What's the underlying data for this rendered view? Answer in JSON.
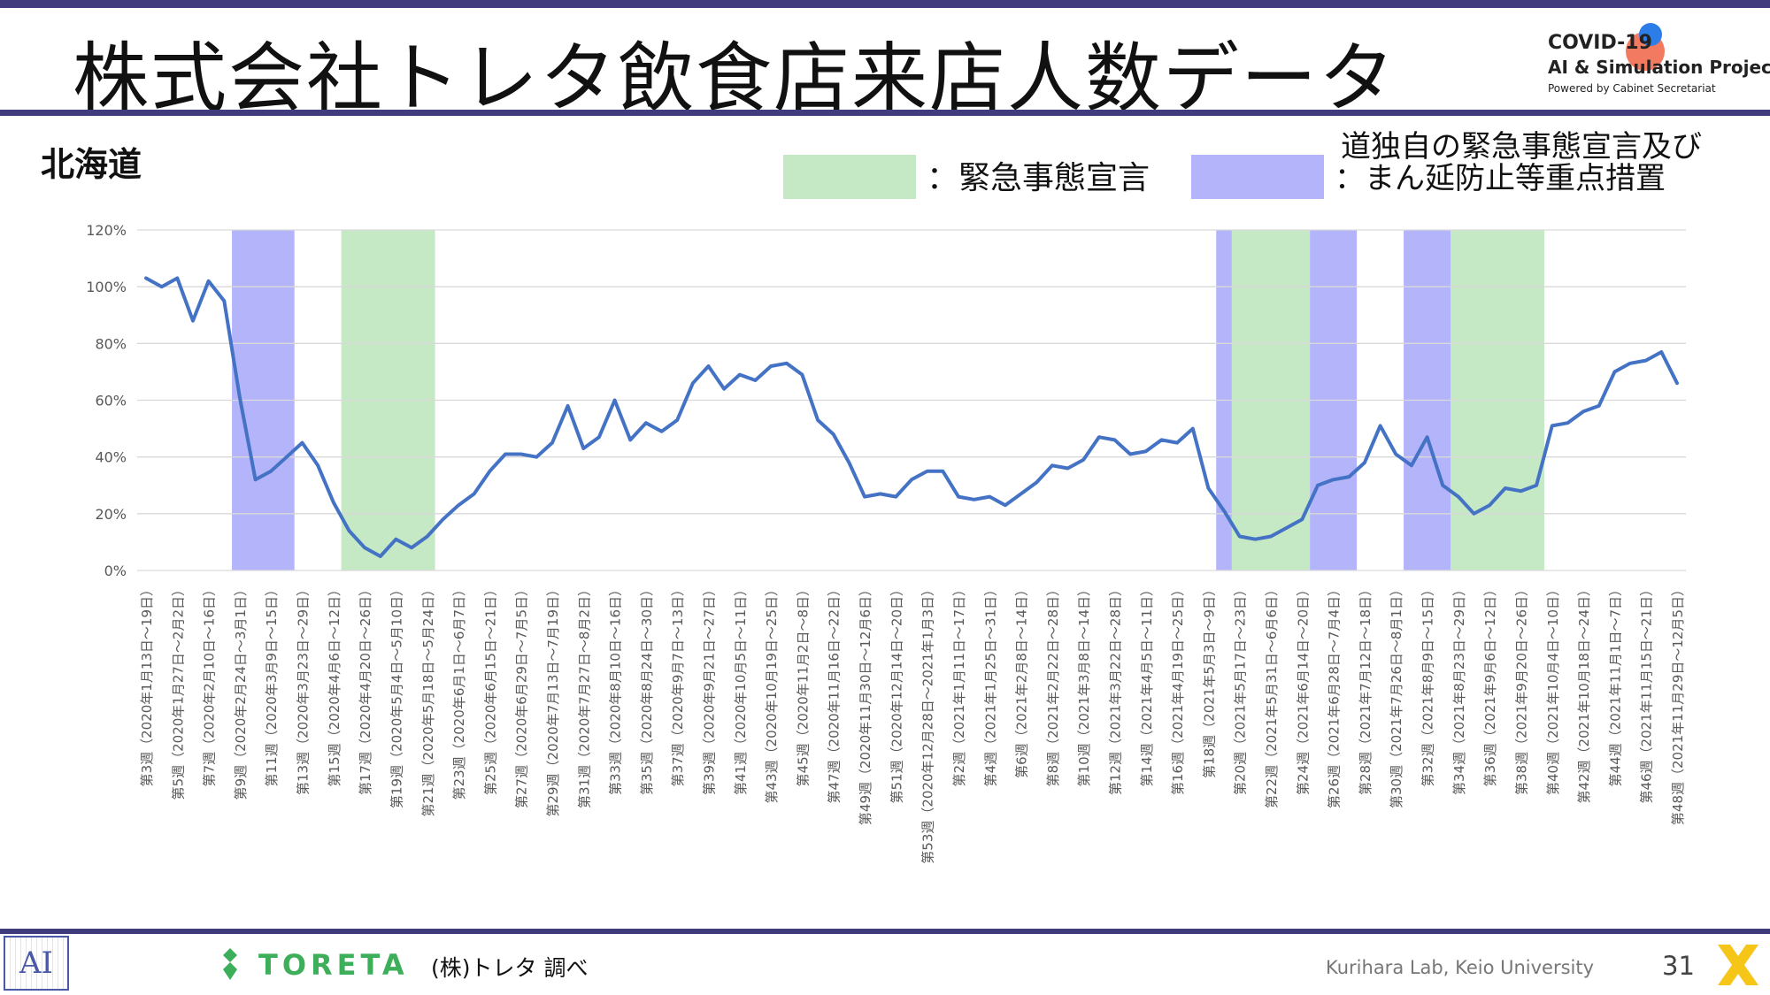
{
  "header": {
    "title": "株式会社トレタ飲食店来店人数データ",
    "logo_line1": "COVID-19",
    "logo_line2": "AI & Simulation Project",
    "logo_line3": "Powered by Cabinet Secretariat"
  },
  "region": "北海道",
  "legend": {
    "emergency_label": "：緊急事態宣言",
    "emergency_color": "#c5e8c5",
    "priority_label_line1": "道独自の緊急事態宣言及び",
    "priority_label_line2": "：まん延防止等重点措置",
    "priority_color": "#b3b4fa"
  },
  "footer": {
    "ai_logo": "AI",
    "toreta_brand": "TORETA",
    "source": "(株)トレタ 調べ",
    "lab": "Kurihara Lab, Keio University",
    "page_number": "31"
  },
  "chart_data": {
    "type": "line",
    "line_color": "#4472c4",
    "grid": true,
    "ylim": [
      0,
      120
    ],
    "y_ticks": [
      "0%",
      "20%",
      "40%",
      "60%",
      "80%",
      "100%",
      "120%"
    ],
    "x_tick_labels": [
      "第3週（2020年1月13日～19日）",
      "第5週（2020年1月27日～2月2日）",
      "第7週（2020年2月10日～16日）",
      "第9週（2020年2月24日～3月1日）",
      "第11週（2020年3月9日～15日）",
      "第13週（2020年3月23日～29日）",
      "第15週（2020年4月6日～12日）",
      "第17週（2020年4月20日～26日）",
      "第19週（2020年5月4日～5月10日）",
      "第21週（2020年5月18日～5月24日）",
      "第23週（2020年6月1日～6月7日）",
      "第25週（2020年6月15日～21日）",
      "第27週（2020年6月29日～7月5日）",
      "第29週（2020年7月13日～7月19日）",
      "第31週（2020年7月27日～8月2日）",
      "第33週（2020年8月10日～16日）",
      "第35週（2020年8月24日～30日）",
      "第37週（2020年9月7日～13日）",
      "第39週（2020年9月21日～27日）",
      "第41週（2020年10月5日～11日）",
      "第43週（2020年10月19日～25日）",
      "第45週（2020年11月2日～8日）",
      "第47週（2020年11月16日～22日）",
      "第49週（2020年11月30日～12月6日）",
      "第51週（2020年12月14日～20日）",
      "第53週（2020年12月28日～2021年1月3日）",
      "第2週（2021年1月11日～17日）",
      "第4週（2021年1月25日～31日）",
      "第6週（2021年2月8日～14日）",
      "第8週（2021年2月22日～28日）",
      "第10週（2021年3月8日～14日）",
      "第12週（2021年3月22日～28日）",
      "第14週（2021年4月5日～11日）",
      "第16週（2021年4月19日～25日）",
      "第18週（2021年5月3日～9日）",
      "第20週（2021年5月17日～23日）",
      "第22週（2021年5月31日～6月6日）",
      "第24週（2021年6月14日～20日）",
      "第26週（2021年6月28日～7月4日）",
      "第28週（2021年7月12日～18日）",
      "第30週（2021年7月26日～8月1日）",
      "第32週（2021年8月9日～15日）",
      "第34週（2021年8月23日～29日）",
      "第36週（2021年9月6日～12日）",
      "第38週（2021年9月20日～26日）",
      "第40週（2021年10月4日～10日）",
      "第42週（2021年10月18日～24日）",
      "第44週（2021年11月1日～7日）",
      "第46週（2021年11月15日～21日）",
      "第48週（2021年11月29日～12月5日）"
    ],
    "series": [
      {
        "values": [
          103,
          100,
          103,
          88,
          102,
          95,
          61,
          32,
          35,
          40,
          45,
          37,
          24,
          14,
          8,
          5,
          11,
          8,
          12,
          18,
          23,
          27,
          35,
          41,
          41,
          40,
          45,
          58,
          43,
          47,
          60,
          46,
          52,
          49,
          53,
          66,
          72,
          64,
          69,
          67,
          72,
          73,
          69,
          53,
          48,
          38,
          26,
          27,
          26,
          32,
          35,
          35,
          26,
          25,
          26,
          23,
          27,
          31,
          37,
          36,
          39,
          47,
          46,
          41,
          42,
          46,
          45,
          50,
          29,
          21,
          12,
          11,
          12,
          15,
          18,
          30,
          32,
          33,
          38,
          51,
          41,
          37,
          47,
          30,
          26,
          20,
          23,
          29,
          28,
          30,
          51,
          52,
          56,
          58,
          70,
          73,
          74,
          77,
          66
        ]
      }
    ],
    "shaded_periods": [
      {
        "kind": "priority",
        "start_index": 5.5,
        "end_index": 9.5
      },
      {
        "kind": "emergency",
        "start_index": 12.5,
        "end_index": 18.5
      },
      {
        "kind": "priority",
        "start_index": 68.5,
        "end_index": 69.5
      },
      {
        "kind": "emergency",
        "start_index": 69.5,
        "end_index": 74.5
      },
      {
        "kind": "priority",
        "start_index": 74.5,
        "end_index": 77.5
      },
      {
        "kind": "priority",
        "start_index": 80.5,
        "end_index": 83.5
      },
      {
        "kind": "emergency",
        "start_index": 83.5,
        "end_index": 89.5
      }
    ]
  }
}
